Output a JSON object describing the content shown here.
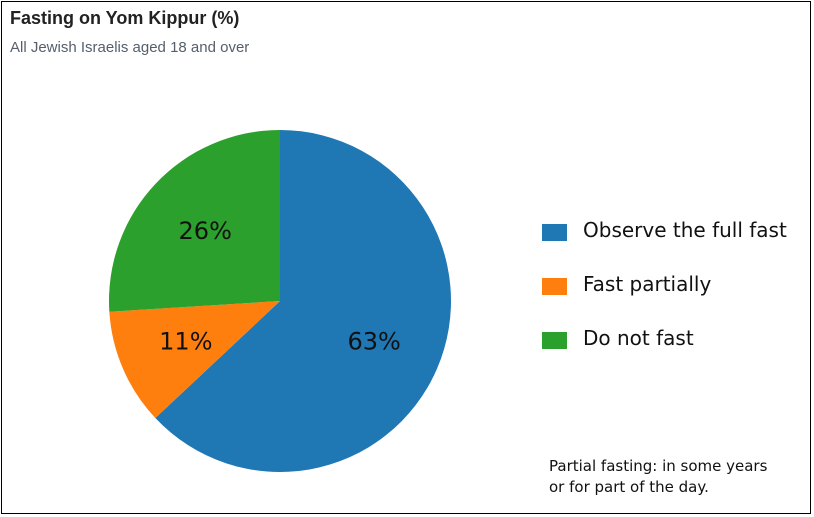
{
  "title": "Fasting on Yom Kippur (%)",
  "subtitle": "All Jewish Israelis aged 18 and over",
  "note": {
    "line1": "Partial fasting: in some years",
    "line2": "or for part of the day."
  },
  "chart_data": {
    "type": "pie",
    "title": "Fasting on Yom Kippur (%)",
    "subtitle": "All Jewish Israelis aged 18 and over",
    "start_angle": "12 o'clock, clockwise",
    "slices": [
      {
        "label": "Observe the full fast",
        "value": 63,
        "display": "63%",
        "color": "#1f77b4"
      },
      {
        "label": "Fast partially",
        "value": 11,
        "display": "11%",
        "color": "#ff7f0e"
      },
      {
        "label": "Do not fast",
        "value": 26,
        "display": "26%",
        "color": "#2ca02c"
      }
    ],
    "legend_position": "right"
  }
}
